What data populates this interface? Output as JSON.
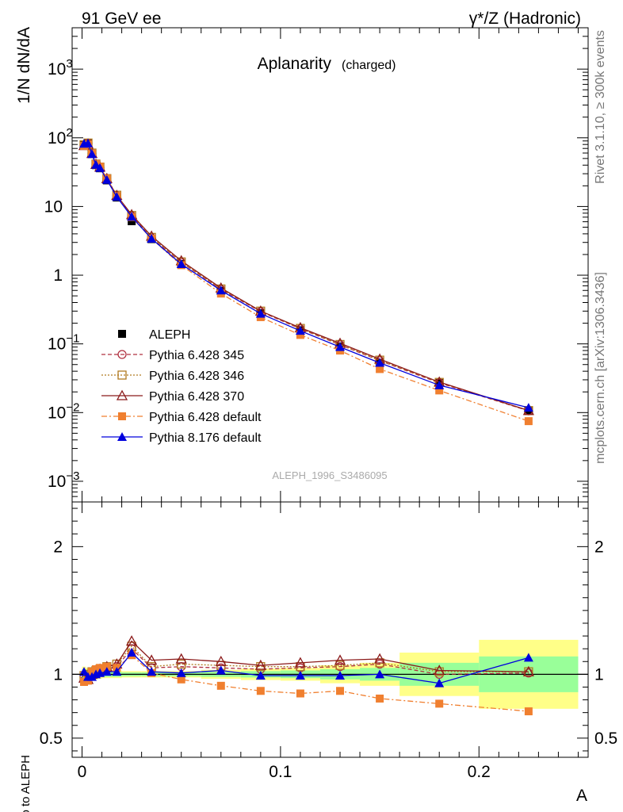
{
  "header": {
    "left": "91 GeV ee",
    "right": "γ*/Z (Hadronic)"
  },
  "side_text": {
    "rivet": "Rivet 3.1.10, ≥ 300k events",
    "mcplots": "mcplots.cern.ch [arXiv:1306.3436]"
  },
  "chart_data": [
    {
      "type": "line",
      "panel": "main",
      "title": "Aplanarity",
      "title_suffix": "(charged)",
      "ylabel": "1/N dN/dA",
      "yscale": "log",
      "ylim": [
        0.0005,
        4000
      ],
      "xlim": [
        -0.005,
        0.255
      ],
      "ytick_labels": [
        "10^-3",
        "10^-2",
        "10^-1",
        "1",
        "10",
        "10^2",
        "10^3"
      ],
      "watermark": "ALEPH_1996_S3486095",
      "legend_position": "lower-left",
      "x": [
        0.001,
        0.003,
        0.005,
        0.007,
        0.009,
        0.0125,
        0.0175,
        0.025,
        0.035,
        0.05,
        0.07,
        0.09,
        0.11,
        0.13,
        0.15,
        0.18,
        0.225
      ],
      "series": [
        {
          "name": "ALEPH",
          "color": "#000000",
          "marker": "square",
          "style": "data",
          "values": [
            80,
            84,
            58,
            40,
            36,
            24,
            13.5,
            6.1,
            3.35,
            1.45,
            0.59,
            0.28,
            0.158,
            0.092,
            0.053,
            0.027,
            0.0105
          ]
        },
        {
          "name": "Pythia 6.428 345",
          "color": "#b03040",
          "marker": "open-circle",
          "style": "dashed",
          "values": [
            78,
            83,
            59,
            41,
            37,
            25,
            14.3,
            7.3,
            3.5,
            1.54,
            0.62,
            0.295,
            0.166,
            0.097,
            0.057,
            0.027,
            0.0106
          ]
        },
        {
          "name": "Pythia 6.428 346",
          "color": "#b07a20",
          "marker": "open-square",
          "style": "dotted",
          "values": [
            79,
            84,
            60,
            41.5,
            37.5,
            25.5,
            14.6,
            7.4,
            3.55,
            1.56,
            0.63,
            0.3,
            0.168,
            0.098,
            0.058,
            0.0275,
            0.0107
          ]
        },
        {
          "name": "Pythia 6.428 370",
          "color": "#8b1a1a",
          "marker": "open-triangle",
          "style": "solid",
          "values": [
            77,
            81,
            59,
            41,
            37.5,
            25.5,
            14.5,
            7.6,
            3.7,
            1.62,
            0.65,
            0.3,
            0.172,
            0.102,
            0.06,
            0.0278,
            0.0107
          ]
        },
        {
          "name": "Pythia 6.428 default",
          "color": "#f07f2f",
          "marker": "square",
          "style": "dashdot",
          "values": [
            76,
            80,
            59,
            41.5,
            38,
            25.5,
            14.2,
            7.0,
            3.4,
            1.4,
            0.54,
            0.245,
            0.135,
            0.08,
            0.043,
            0.021,
            0.0075
          ]
        },
        {
          "name": "Pythia 8.176 default",
          "color": "#0000dd",
          "marker": "triangle",
          "style": "solid",
          "values": [
            82,
            83,
            58,
            40.5,
            36.5,
            24.5,
            13.8,
            7.1,
            3.4,
            1.45,
            0.6,
            0.275,
            0.155,
            0.09,
            0.053,
            0.025,
            0.0118
          ]
        }
      ]
    },
    {
      "type": "line",
      "panel": "ratio",
      "ylabel": "Ratio to ALEPH",
      "xlabel": "A",
      "ylim": [
        0.35,
        2.35
      ],
      "ytick_labels": [
        "0.5",
        "1",
        "2"
      ],
      "xtick_labels": [
        "0",
        "0.1",
        "0.2"
      ],
      "band_inner_color": "#99ff99",
      "band_outer_color": "#ffff88",
      "band_edges": [
        0,
        0.002,
        0.004,
        0.006,
        0.008,
        0.01,
        0.015,
        0.02,
        0.03,
        0.04,
        0.06,
        0.08,
        0.1,
        0.12,
        0.14,
        0.16,
        0.2,
        0.25
      ],
      "band_inner": [
        0.04,
        0.035,
        0.03,
        0.025,
        0.02,
        0.02,
        0.02,
        0.015,
        0.015,
        0.015,
        0.02,
        0.025,
        0.03,
        0.04,
        0.05,
        0.09,
        0.14
      ],
      "band_outer": [
        0.06,
        0.05,
        0.045,
        0.04,
        0.035,
        0.03,
        0.03,
        0.025,
        0.025,
        0.025,
        0.035,
        0.045,
        0.05,
        0.07,
        0.09,
        0.17,
        0.27
      ],
      "x": [
        0.001,
        0.003,
        0.005,
        0.007,
        0.009,
        0.0125,
        0.0175,
        0.025,
        0.035,
        0.05,
        0.07,
        0.09,
        0.11,
        0.13,
        0.15,
        0.18,
        0.225
      ],
      "series": [
        {
          "name": "Pythia 6.428 345",
          "color": "#b03040",
          "marker": "open-circle",
          "style": "dashed",
          "values": [
            0.98,
            0.99,
            1.01,
            1.02,
            1.03,
            1.04,
            1.06,
            1.2,
            1.05,
            1.06,
            1.05,
            1.04,
            1.05,
            1.06,
            1.08,
            1.0,
            1.01
          ]
        },
        {
          "name": "Pythia 6.428 346",
          "color": "#b07a20",
          "marker": "open-square",
          "style": "dotted",
          "values": [
            0.99,
            1.0,
            1.02,
            1.03,
            1.04,
            1.06,
            1.08,
            1.22,
            1.06,
            1.08,
            1.07,
            1.06,
            1.06,
            1.07,
            1.09,
            1.02,
            1.02
          ]
        },
        {
          "name": "Pythia 6.428 370",
          "color": "#8b1a1a",
          "marker": "open-triangle",
          "style": "solid",
          "values": [
            0.97,
            0.96,
            1.0,
            1.02,
            1.04,
            1.06,
            1.08,
            1.26,
            1.11,
            1.12,
            1.1,
            1.07,
            1.09,
            1.11,
            1.12,
            1.03,
            1.02
          ]
        },
        {
          "name": "Pythia 6.428 default",
          "color": "#f07f2f",
          "marker": "square",
          "style": "dashdot",
          "values": [
            0.94,
            0.95,
            1.02,
            1.04,
            1.05,
            1.06,
            1.05,
            1.15,
            1.01,
            0.96,
            0.91,
            0.87,
            0.85,
            0.87,
            0.81,
            0.77,
            0.71
          ]
        },
        {
          "name": "Pythia 8.176 default",
          "color": "#0000dd",
          "marker": "triangle",
          "style": "solid",
          "values": [
            1.02,
            0.98,
            0.98,
            1.0,
            1.01,
            1.02,
            1.02,
            1.17,
            1.02,
            1.01,
            1.03,
            0.99,
            0.99,
            0.99,
            1.0,
            0.93,
            1.13
          ]
        }
      ]
    }
  ]
}
